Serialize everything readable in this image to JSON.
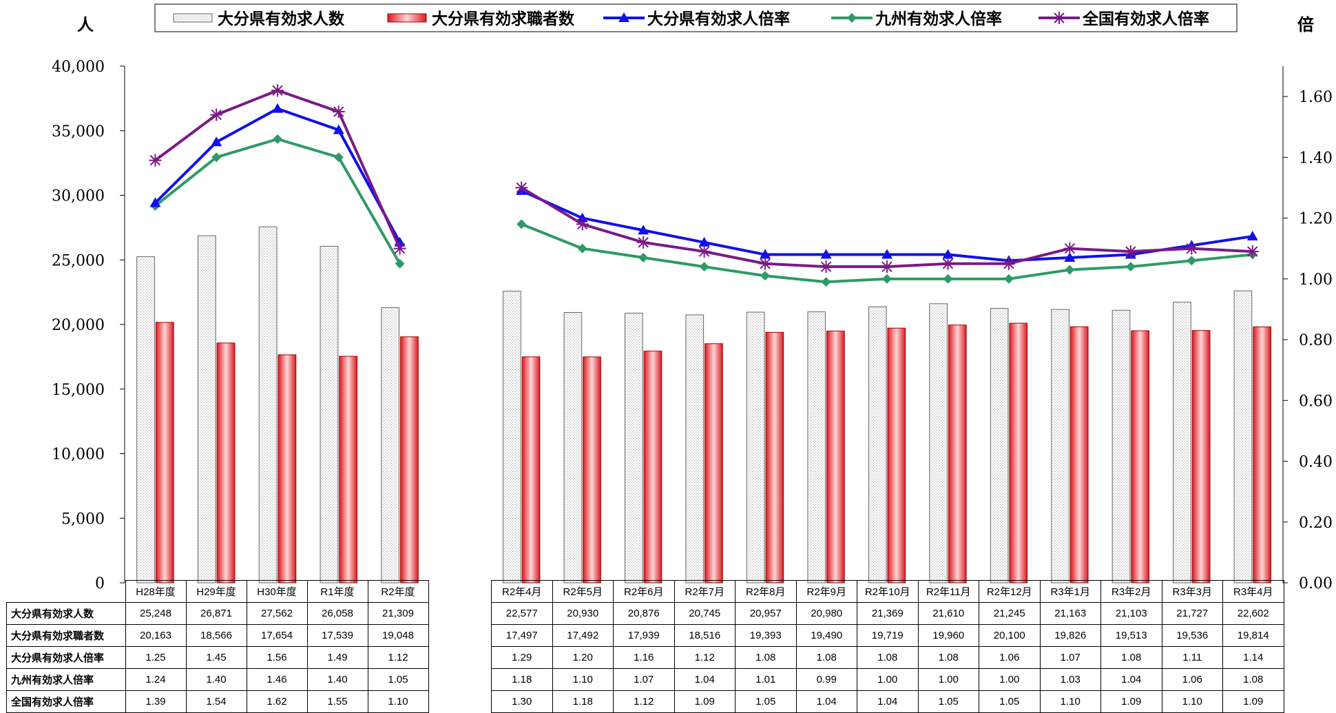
{
  "colors": {
    "jobs_fill": "#e8e8e8",
    "seekers_fill": "#e8202a",
    "oita_ratio": "#1010ee",
    "kyushu_ratio": "#2e9a66",
    "national_ratio": "#7a1a86"
  },
  "chart_data": {
    "type": "bar",
    "left_unit": "人",
    "right_unit": "倍",
    "y_left": {
      "min": 0,
      "max": 40000,
      "ticks": [
        "0",
        "5,000",
        "10,000",
        "15,000",
        "20,000",
        "25,000",
        "30,000",
        "35,000",
        "40,000"
      ]
    },
    "y_right": {
      "min": 0,
      "max": 1.7,
      "ticks": [
        "0.00",
        "0.20",
        "0.40",
        "0.60",
        "0.80",
        "1.00",
        "1.20",
        "1.40",
        "1.60"
      ]
    },
    "legend": [
      "大分県有効求人数",
      "大分県有効求職者数",
      "大分県有効求人倍率",
      "九州有効求人倍率",
      "全国有効求人倍率"
    ],
    "groups": [
      {
        "categories": [
          "H28年度",
          "H29年度",
          "H30年度",
          "R1年度",
          "R2年度"
        ],
        "series": [
          {
            "name": "大分県有効求人数",
            "kind": "bar",
            "axis": "left",
            "values": [
              25248,
              26871,
              27562,
              26058,
              21309
            ],
            "labels": [
              "25,248",
              "26,871",
              "27,562",
              "26,058",
              "21,309"
            ]
          },
          {
            "name": "大分県有効求職者数",
            "kind": "bar",
            "axis": "left",
            "values": [
              20163,
              18566,
              17654,
              17539,
              19048
            ],
            "labels": [
              "20,163",
              "18,566",
              "17,654",
              "17,539",
              "19,048"
            ]
          },
          {
            "name": "大分県有効求人倍率",
            "kind": "line",
            "axis": "right",
            "values": [
              1.25,
              1.45,
              1.56,
              1.49,
              1.12
            ],
            "labels": [
              "1.25",
              "1.45",
              "1.56",
              "1.49",
              "1.12"
            ]
          },
          {
            "name": "九州有効求人倍率",
            "kind": "line",
            "axis": "right",
            "values": [
              1.24,
              1.4,
              1.46,
              1.4,
              1.05
            ],
            "labels": [
              "1.24",
              "1.40",
              "1.46",
              "1.40",
              "1.05"
            ]
          },
          {
            "name": "全国有効求人倍率",
            "kind": "line",
            "axis": "right",
            "values": [
              1.39,
              1.54,
              1.62,
              1.55,
              1.1
            ],
            "labels": [
              "1.39",
              "1.54",
              "1.62",
              "1.55",
              "1.10"
            ]
          }
        ]
      },
      {
        "categories": [
          "R2年4月",
          "R2年5月",
          "R2年6月",
          "R2年7月",
          "R2年8月",
          "R2年9月",
          "R2年10月",
          "R2年11月",
          "R2年12月",
          "R3年1月",
          "R3年2月",
          "R3年3月",
          "R3年4月"
        ],
        "series": [
          {
            "name": "大分県有効求人数",
            "kind": "bar",
            "axis": "left",
            "values": [
              22577,
              20930,
              20876,
              20745,
              20957,
              20980,
              21369,
              21610,
              21245,
              21163,
              21103,
              21727,
              22602
            ],
            "labels": [
              "22,577",
              "20,930",
              "20,876",
              "20,745",
              "20,957",
              "20,980",
              "21,369",
              "21,610",
              "21,245",
              "21,163",
              "21,103",
              "21,727",
              "22,602"
            ]
          },
          {
            "name": "大分県有効求職者数",
            "kind": "bar",
            "axis": "left",
            "values": [
              17497,
              17492,
              17939,
              18516,
              19393,
              19490,
              19719,
              19960,
              20100,
              19826,
              19513,
              19536,
              19814
            ],
            "labels": [
              "17,497",
              "17,492",
              "17,939",
              "18,516",
              "19,393",
              "19,490",
              "19,719",
              "19,960",
              "20,100",
              "19,826",
              "19,513",
              "19,536",
              "19,814"
            ]
          },
          {
            "name": "大分県有効求人倍率",
            "kind": "line",
            "axis": "right",
            "values": [
              1.29,
              1.2,
              1.16,
              1.12,
              1.08,
              1.08,
              1.08,
              1.08,
              1.06,
              1.07,
              1.08,
              1.11,
              1.14
            ],
            "labels": [
              "1.29",
              "1.20",
              "1.16",
              "1.12",
              "1.08",
              "1.08",
              "1.08",
              "1.08",
              "1.06",
              "1.07",
              "1.08",
              "1.11",
              "1.14"
            ]
          },
          {
            "name": "九州有効求人倍率",
            "kind": "line",
            "axis": "right",
            "values": [
              1.18,
              1.1,
              1.07,
              1.04,
              1.01,
              0.99,
              1.0,
              1.0,
              1.0,
              1.03,
              1.04,
              1.06,
              1.08
            ],
            "labels": [
              "1.18",
              "1.10",
              "1.07",
              "1.04",
              "1.01",
              "0.99",
              "1.00",
              "1.00",
              "1.00",
              "1.03",
              "1.04",
              "1.06",
              "1.08"
            ]
          },
          {
            "name": "全国有効求人倍率",
            "kind": "line",
            "axis": "right",
            "values": [
              1.3,
              1.18,
              1.12,
              1.09,
              1.05,
              1.04,
              1.04,
              1.05,
              1.05,
              1.1,
              1.09,
              1.1,
              1.09
            ],
            "labels": [
              "1.30",
              "1.18",
              "1.12",
              "1.09",
              "1.05",
              "1.04",
              "1.04",
              "1.05",
              "1.05",
              "1.10",
              "1.09",
              "1.10",
              "1.09"
            ]
          }
        ]
      }
    ]
  }
}
